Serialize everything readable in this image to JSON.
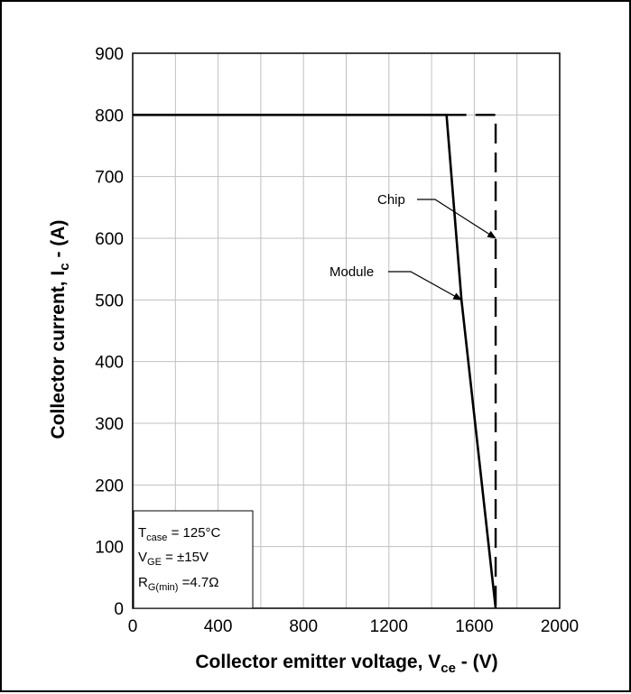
{
  "chart_data": {
    "type": "line",
    "xlabel": "Collector emitter voltage, V",
    "xlabel_sub": "ce",
    "xlabel_unit": " - (V)",
    "ylabel": "Collector current, I",
    "ylabel_sub": "c",
    "ylabel_unit": " - (A)",
    "xlim": [
      0,
      2000
    ],
    "ylim": [
      0,
      900
    ],
    "x_ticks": [
      0,
      400,
      800,
      1200,
      1600,
      2000
    ],
    "y_ticks": [
      0,
      100,
      200,
      300,
      400,
      500,
      600,
      700,
      800,
      900
    ],
    "x_tick_labels": [
      "0",
      "400",
      "800",
      "1200",
      "1600",
      "2000"
    ],
    "y_tick_labels": [
      "0",
      "100",
      "200",
      "300",
      "400",
      "500",
      "600",
      "700",
      "800",
      "900"
    ],
    "grid": true,
    "grid_x_step": 200,
    "grid_y_step": 100,
    "series": [
      {
        "name": "Module",
        "style": "solid",
        "points": [
          [
            0,
            800
          ],
          [
            1470,
            800
          ],
          [
            1540,
            500
          ],
          [
            1700,
            0
          ]
        ]
      },
      {
        "name": "Chip",
        "style": "dashed",
        "points": [
          [
            1470,
            800
          ],
          [
            1700,
            800
          ],
          [
            1700,
            0
          ]
        ]
      }
    ],
    "annotations": [
      {
        "text": "Chip",
        "target": [
          1700,
          600
        ]
      },
      {
        "text": "Module",
        "target": [
          1540,
          500
        ]
      }
    ],
    "conditions": {
      "line1": {
        "main": "T",
        "sub": "case",
        "rest": " = 125°C"
      },
      "line2": {
        "main": "V",
        "sub": "GE",
        "rest": " = ±15V"
      },
      "line3": {
        "main": "R",
        "sub": "G(min)",
        "rest": " =4.7Ω"
      }
    }
  }
}
